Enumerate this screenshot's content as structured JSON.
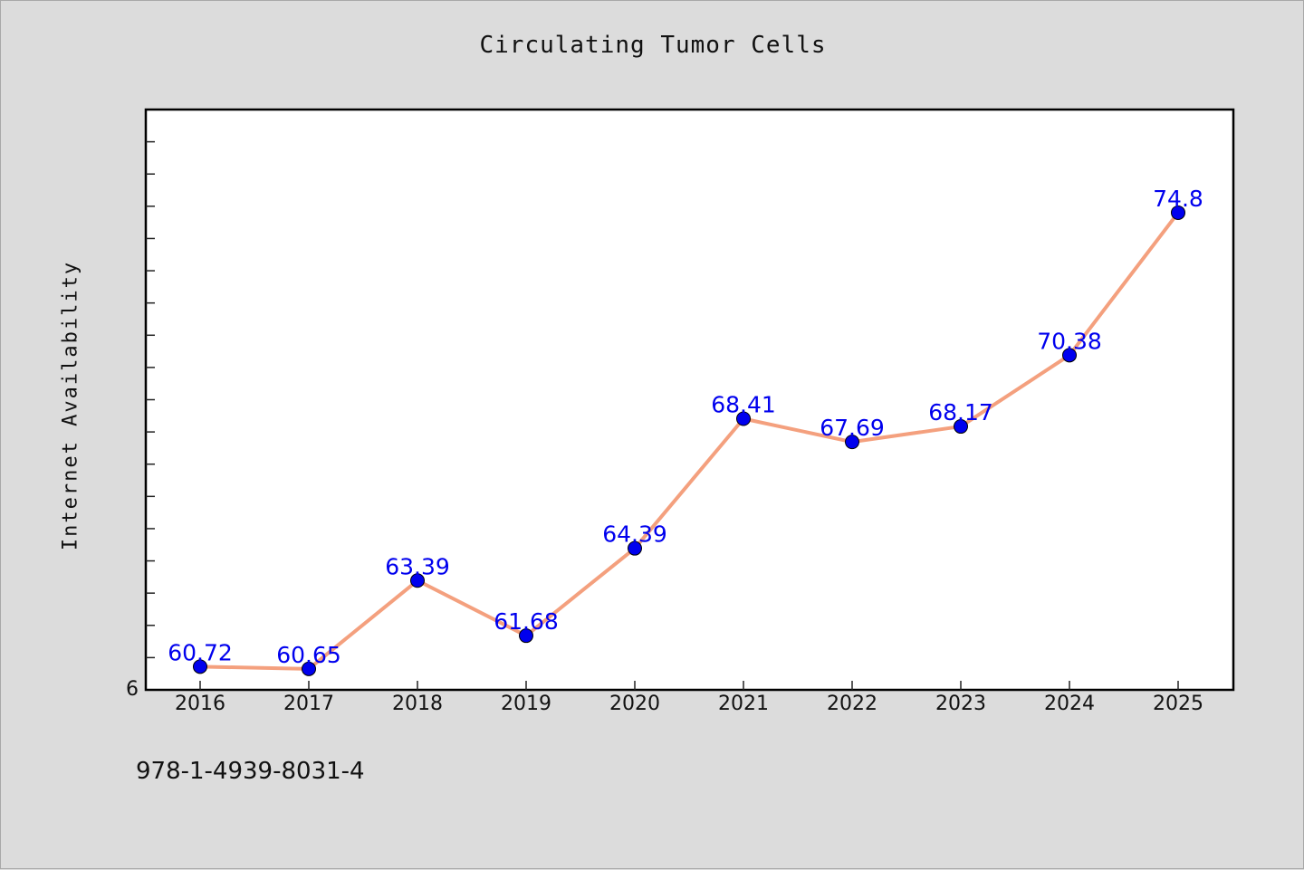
{
  "chart_data": {
    "type": "line",
    "title": "Circulating Tumor Cells",
    "xlabel": "",
    "ylabel": "Internet Availability",
    "categories": [
      "2016",
      "2017",
      "2018",
      "2019",
      "2020",
      "2021",
      "2022",
      "2023",
      "2024",
      "2025"
    ],
    "series": [
      {
        "values": [
          60.72,
          60.65,
          63.39,
          61.68,
          64.39,
          68.41,
          67.69,
          68.17,
          70.38,
          74.8
        ]
      }
    ],
    "data_labels": [
      "60.72",
      "60.65",
      "63.39",
      "61.68",
      "64.39",
      "68.41",
      "67.69",
      "68.17",
      "70.38",
      "74.8"
    ],
    "y_tick_label": "6",
    "ylim": [
      60.0,
      78.0
    ],
    "grid": false,
    "legend": "none",
    "colors": {
      "line": "#f4a07e",
      "marker": "#0000ee",
      "data_label": "#0000ee",
      "background": "#dcdcdc",
      "plot_area": "#ffffff"
    }
  },
  "footnote": "978-1-4939-8031-4"
}
